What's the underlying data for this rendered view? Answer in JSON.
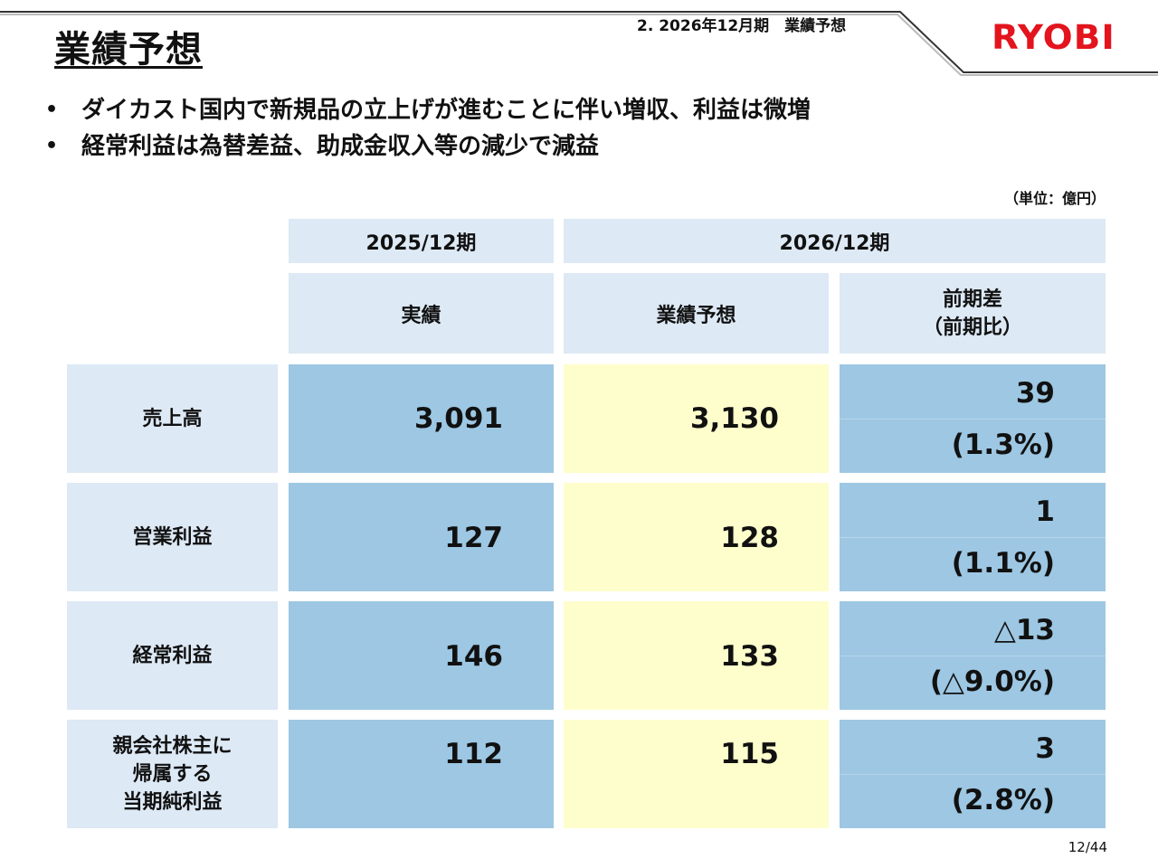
{
  "header": {
    "title": "業績予想",
    "section": "2. 2026年12月期　業績予想",
    "logo": "RYOBI",
    "colors": {
      "logo": "#e3141d",
      "header_blue": "#dde9f5",
      "cell_blue": "#9dc7e3",
      "cell_yellow": "#fefecc"
    }
  },
  "bullets": [
    {
      "marker": "•",
      "text": "ダイカスト国内で新規品の立上げが進むことに伴い増収、利益は微増"
    },
    {
      "marker": "•",
      "text": "経常利益は為替差益、助成金収入等の減少で減益"
    }
  ],
  "unit_note": "（単位：億円）",
  "table": {
    "period_headers": [
      "2025/12期",
      "2026/12期"
    ],
    "column_headers": [
      "実績",
      "業績予想",
      "前期差\n（前期比）"
    ],
    "rows": [
      {
        "label": "売上高",
        "actual": "3,091",
        "forecast": "3,130",
        "diff": "39",
        "ratio": "(1.3%)"
      },
      {
        "label": "営業利益",
        "actual": "127",
        "forecast": "128",
        "diff": "1",
        "ratio": "(1.1%)"
      },
      {
        "label": "経常利益",
        "actual": "146",
        "forecast": "133",
        "diff": "△13",
        "ratio": "(△9.0%)"
      },
      {
        "label": "親会社株主に\n帰属する\n当期純利益",
        "actual": "112",
        "forecast": "115",
        "diff": "3",
        "ratio": "(2.8%)"
      }
    ]
  },
  "page_number": "12/44"
}
